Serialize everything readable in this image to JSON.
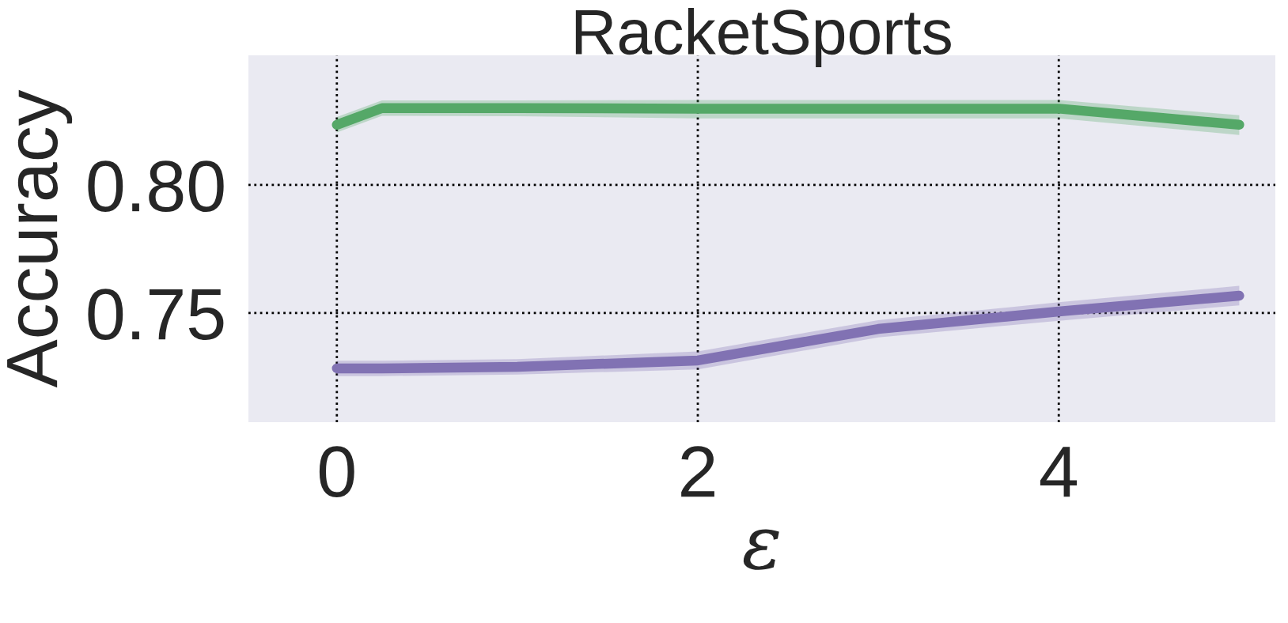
{
  "chart_data": {
    "type": "line",
    "title": "RacketSports",
    "xlabel": "ε",
    "ylabel": "Accuracy",
    "xlim": [
      -0.49,
      5.2
    ],
    "ylim": [
      0.7074,
      0.8506
    ],
    "xticks": [
      0,
      2,
      4
    ],
    "yticks": [
      {
        "value": 0.75,
        "label": "0.75"
      },
      {
        "value": 0.8,
        "label": "0.80"
      }
    ],
    "grid": true,
    "line_style": "solid",
    "marker": "none",
    "legend": false,
    "series": [
      {
        "color": "#55a868",
        "x": [
          0,
          0.25,
          1,
          2,
          3,
          4,
          5
        ],
        "values": [
          0.8235,
          0.83,
          0.83,
          0.8298,
          0.8298,
          0.8298,
          0.8235
        ],
        "lower": [
          0.8205,
          0.827,
          0.8268,
          0.826,
          0.826,
          0.826,
          0.8195
        ],
        "upper": [
          0.8265,
          0.833,
          0.833,
          0.8332,
          0.8332,
          0.8332,
          0.8272
        ]
      },
      {
        "color": "#8172b3",
        "x": [
          0,
          0.25,
          1,
          2,
          3,
          4,
          5
        ],
        "values": [
          0.7284,
          0.7284,
          0.729,
          0.7315,
          0.7438,
          0.7506,
          0.7568
        ],
        "lower": [
          0.7254,
          0.7254,
          0.726,
          0.728,
          0.7405,
          0.747,
          0.753
        ],
        "upper": [
          0.7314,
          0.7314,
          0.732,
          0.735,
          0.7472,
          0.7542,
          0.7606
        ]
      }
    ]
  }
}
